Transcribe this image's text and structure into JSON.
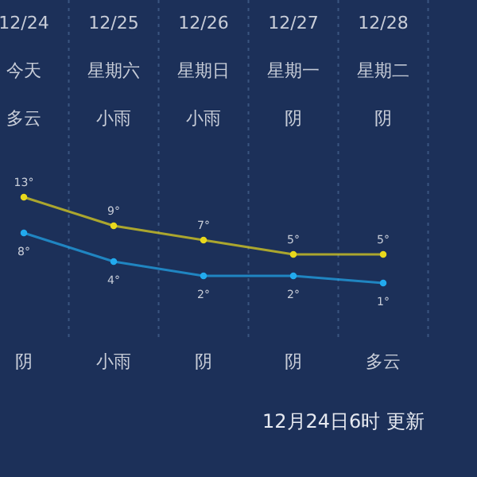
{
  "chart_data": {
    "type": "line",
    "categories": [
      "12/24",
      "12/25",
      "12/26",
      "12/27",
      "12/28"
    ],
    "series": [
      {
        "color": "#e8d81c",
        "values": [
          13,
          9,
          7,
          5,
          5
        ],
        "value_labels": [
          "13°",
          "9°",
          "7°",
          "5°",
          "5°"
        ]
      },
      {
        "color": "#22aaee",
        "values": [
          8,
          4,
          2,
          2,
          1
        ],
        "value_labels": [
          "8°",
          "4°",
          "2°",
          "2°",
          "1°"
        ]
      }
    ],
    "annotations": [
      "今天",
      "星期六",
      "星期日",
      "星期一",
      "星期二",
      "多云",
      "小雨",
      "小雨",
      "阴",
      "阴",
      "阴",
      "小雨",
      "阴",
      "阴",
      "多云",
      "12月24日6时 更新"
    ],
    "marker": "circle",
    "line_style": "solid",
    "grid": "x"
  }
}
